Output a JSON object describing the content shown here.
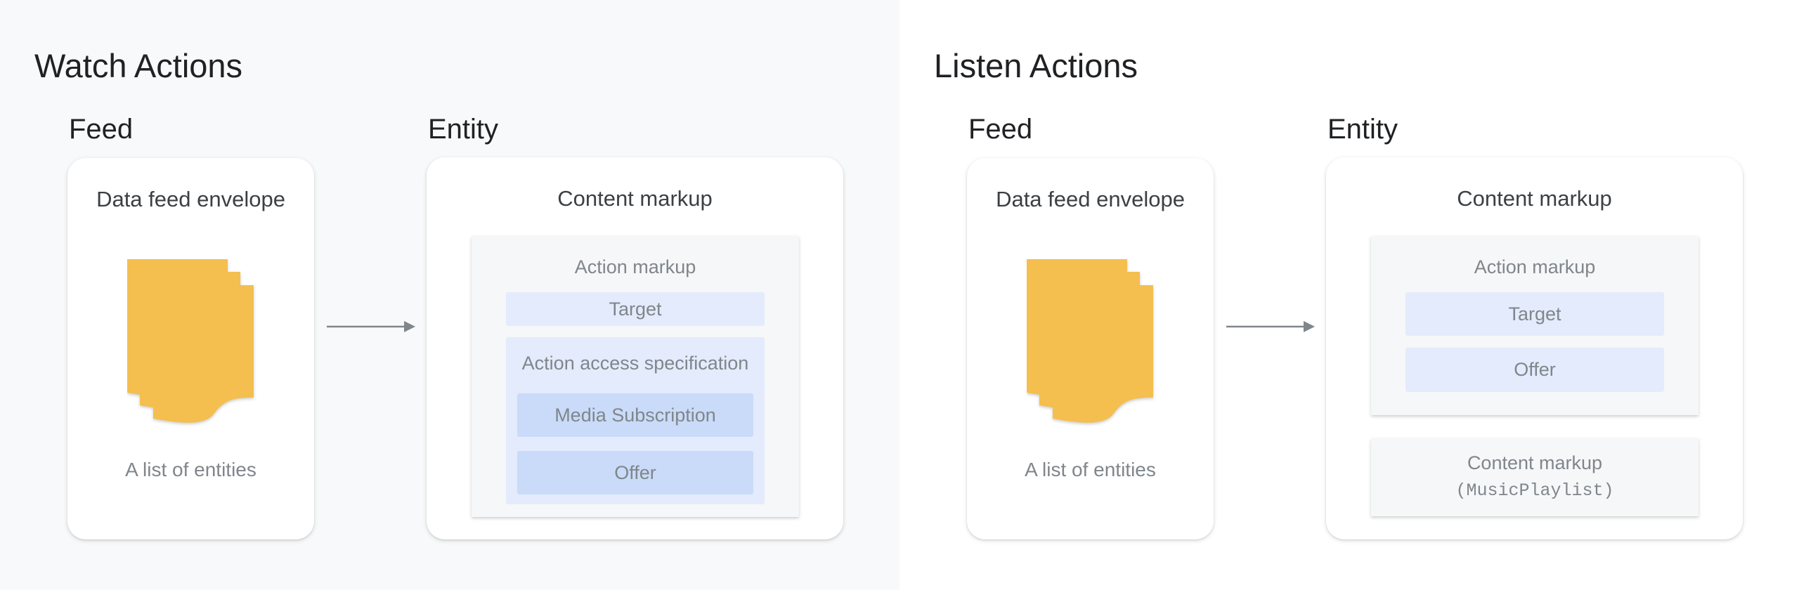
{
  "watch": {
    "title": "Watch Actions",
    "feed_heading": "Feed",
    "entity_heading": "Entity",
    "feed_card": {
      "title": "Data feed envelope",
      "caption": "A list of entities"
    },
    "entity_card": {
      "title": "Content markup",
      "action_markup": {
        "label": "Action markup",
        "target": "Target",
        "access_spec": {
          "label": "Action access specification",
          "items": [
            "Media Subscription",
            "Offer"
          ]
        }
      }
    }
  },
  "listen": {
    "title": "Listen Actions",
    "feed_heading": "Feed",
    "entity_heading": "Entity",
    "feed_card": {
      "title": "Data feed envelope",
      "caption": "A list of entities"
    },
    "entity_card": {
      "title": "Content markup",
      "action_markup": {
        "label": "Action markup",
        "items": [
          "Target",
          "Offer"
        ]
      },
      "content_markup": {
        "label": "Content markup",
        "type": "(MusicPlaylist)"
      }
    }
  },
  "colors": {
    "left_bg": "#f8f9fa",
    "doc": "#f4bf4f",
    "chip_light": "#e3ebfc",
    "chip_dark": "#c9dbf8",
    "arrow": "#80868b"
  }
}
